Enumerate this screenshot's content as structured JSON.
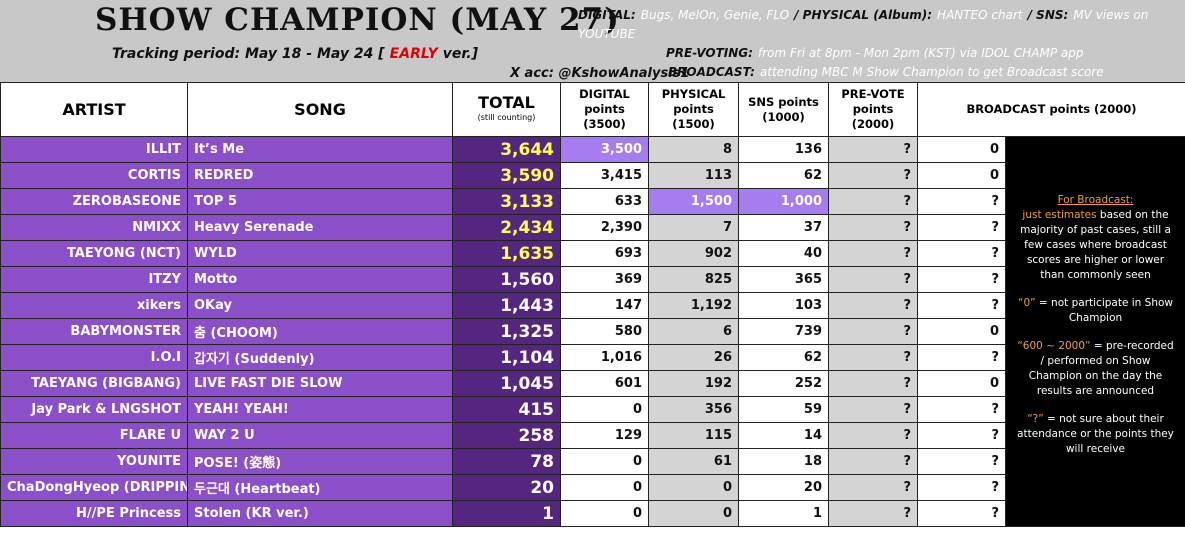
{
  "header": {
    "title": "SHOW CHAMPION (MAY 27)",
    "tracking": [
      "Tracking period: May 18 - May 24 [",
      "EARLY",
      "ver.]"
    ],
    "info": [
      [
        "DIGITAL:",
        "Bugs, MelOn, Genie, FLO",
        "/ PHYSICAL (Album):",
        "HANTEO chart",
        "/ SNS:",
        "MV views on YOUTUBE"
      ],
      [
        "PRE-VOTING:",
        "from Fri at 8pm - Mon 2pm (KST) via IDOL CHAMP app"
      ],
      [
        "BROADCAST:",
        "attending MBC M Show Champion to get Broadcast score"
      ]
    ],
    "account": "X acc: @KshowAnalysis1"
  },
  "table": {
    "columns": [
      {
        "label": "ARTIST"
      },
      {
        "label": "SONG"
      },
      {
        "label": "TOTAL",
        "sub": "(still counting)"
      },
      {
        "label": "DIGITAL points (3500)"
      },
      {
        "label": "PHYSICAL points (1500)"
      },
      {
        "label": "SNS points (1000)"
      },
      {
        "label": "PRE-VOTE points (2000)"
      },
      {
        "label": "BROADCAST points (2000)"
      }
    ],
    "rows": [
      [
        "ILLIT",
        "It’s Me",
        "3,644",
        "3,500",
        "8",
        "136",
        "?",
        "0"
      ],
      [
        "CORTIS",
        "REDRED",
        "3,590",
        "3,415",
        "113",
        "62",
        "?",
        "0"
      ],
      [
        "ZEROBASEONE",
        "TOP 5",
        "3,133",
        "633",
        "1,500",
        "1,000",
        "?",
        "?"
      ],
      [
        "NMIXX",
        "Heavy Serenade",
        "2,434",
        "2,390",
        "7",
        "37",
        "?",
        "?"
      ],
      [
        "TAEYONG (NCT)",
        "WYLD",
        "1,635",
        "693",
        "902",
        "40",
        "?",
        "?"
      ],
      [
        "ITZY",
        "Motto",
        "1,560",
        "369",
        "825",
        "365",
        "?",
        "?"
      ],
      [
        "xikers",
        "OKay",
        "1,443",
        "147",
        "1,192",
        "103",
        "?",
        "?"
      ],
      [
        "BABYMONSTER",
        "춤 (CHOOM)",
        "1,325",
        "580",
        "6",
        "739",
        "?",
        "0"
      ],
      [
        "I.O.I",
        "갑자기 (Suddenly)",
        "1,104",
        "1,016",
        "26",
        "62",
        "?",
        "?"
      ],
      [
        "TAEYANG (BIGBANG)",
        "LIVE FAST DIE SLOW",
        "1,045",
        "601",
        "192",
        "252",
        "?",
        "0"
      ],
      [
        "Jay Park & LNGSHOT",
        "YEAH! YEAH!",
        "415",
        "0",
        "356",
        "59",
        "?",
        "?"
      ],
      [
        "FLARE U",
        "WAY 2 U",
        "258",
        "129",
        "115",
        "14",
        "?",
        "?"
      ],
      [
        "YOUNITE",
        "POSE! (姿態)",
        "78",
        "0",
        "61",
        "18",
        "?",
        "?"
      ],
      [
        "ChaDongHyeop (DRIPPIN)",
        "두근대 (Heartbeat)",
        "20",
        "0",
        "0",
        "20",
        "?",
        "?"
      ],
      [
        "H//PE Princess",
        "Stolen (KR ver.)",
        "1",
        "0",
        "0",
        "1",
        "?",
        "?"
      ]
    ],
    "highlights": [
      [
        0,
        3
      ],
      [
        2,
        4
      ],
      [
        2,
        5
      ]
    ],
    "gold_total_rows": 5
  },
  "note": {
    "heading": "For Broadcast:",
    "lead": "just estimates",
    "text": "based on the majority of past cases, still a few cases where broadcast scores are higher or lower than commonly seen",
    "items": [
      {
        "key": "“0”",
        "text": "= not participate in Show Champion"
      },
      {
        "key": "“600 ~ 2000”",
        "text": "= pre-recorded / performed on Show Champion on the day the results are announced"
      },
      {
        "key": "“?”",
        "text": "= not sure about their attendance or the points they will receive"
      }
    ]
  }
}
